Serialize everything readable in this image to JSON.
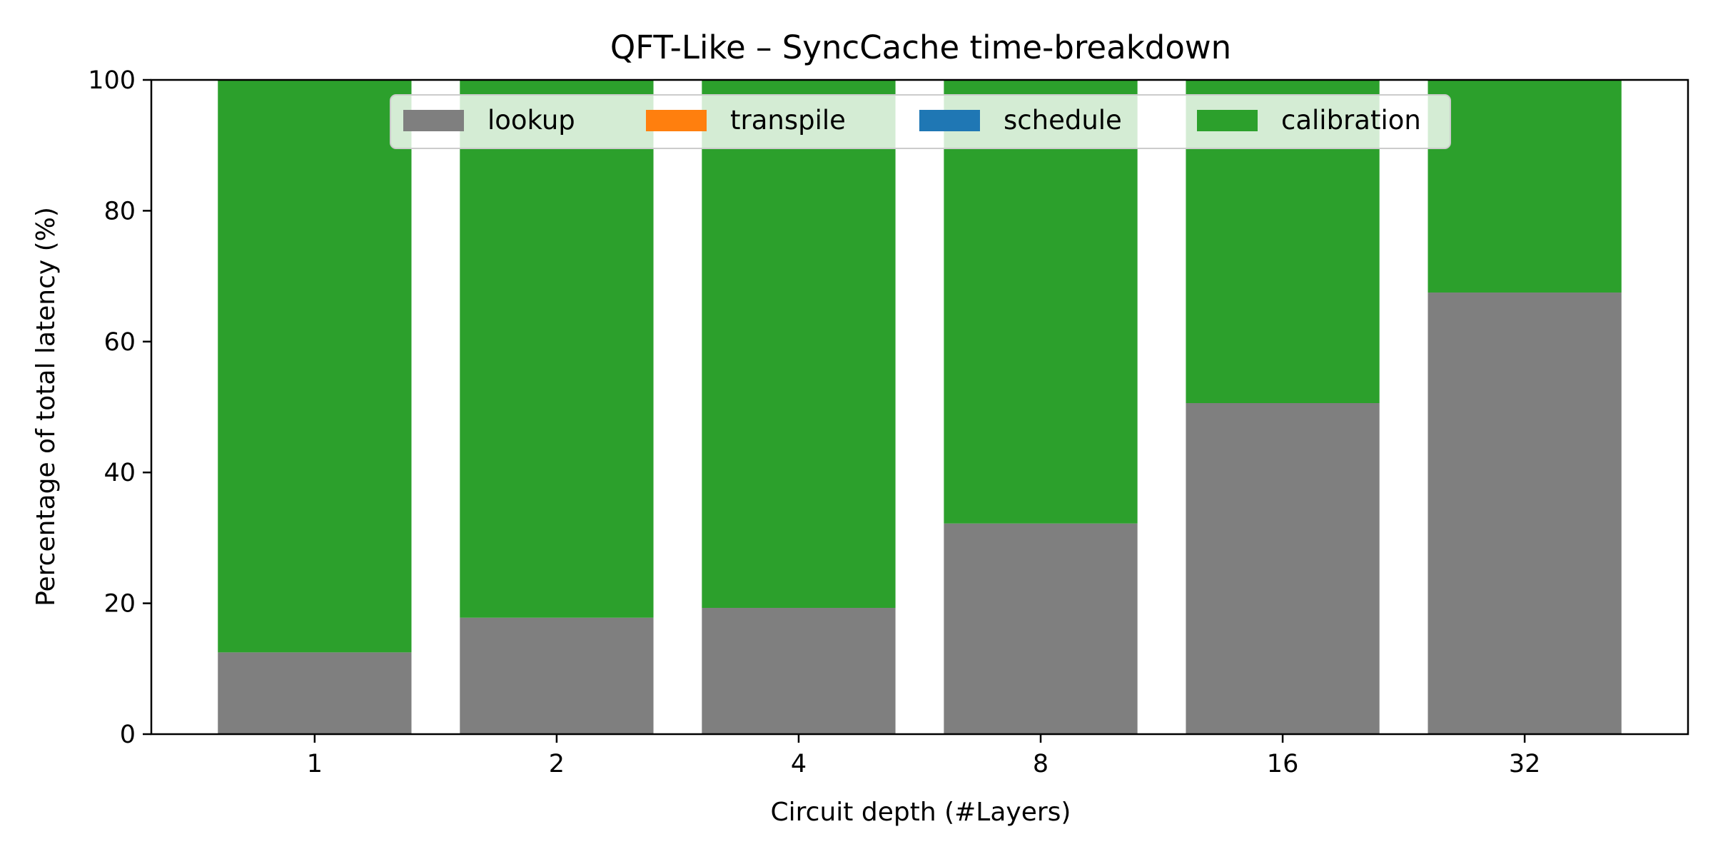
{
  "chart_data": {
    "type": "bar",
    "stacked": true,
    "title": "QFT-Like – SyncCache time-breakdown",
    "xlabel": "Circuit depth (#Layers)",
    "ylabel": "Percentage of total latency (%)",
    "categories": [
      "1",
      "2",
      "4",
      "8",
      "16",
      "32"
    ],
    "ylim": [
      0,
      100
    ],
    "yticks": [
      "0",
      "20",
      "40",
      "60",
      "80",
      "100"
    ],
    "grid": false,
    "legend_position": "top-center",
    "series": [
      {
        "name": "lookup",
        "color": "#7f7f7f",
        "values": [
          12.5,
          17.8,
          19.3,
          32.2,
          50.6,
          67.5
        ]
      },
      {
        "name": "transpile",
        "color": "#ff7f0e",
        "values": [
          0,
          0,
          0,
          0,
          0,
          0
        ]
      },
      {
        "name": "schedule",
        "color": "#1f77b4",
        "values": [
          0,
          0,
          0,
          0,
          0,
          0
        ]
      },
      {
        "name": "calibration",
        "color": "#2ca02c",
        "values": [
          87.5,
          82.2,
          80.7,
          67.8,
          49.4,
          32.5
        ]
      }
    ]
  }
}
